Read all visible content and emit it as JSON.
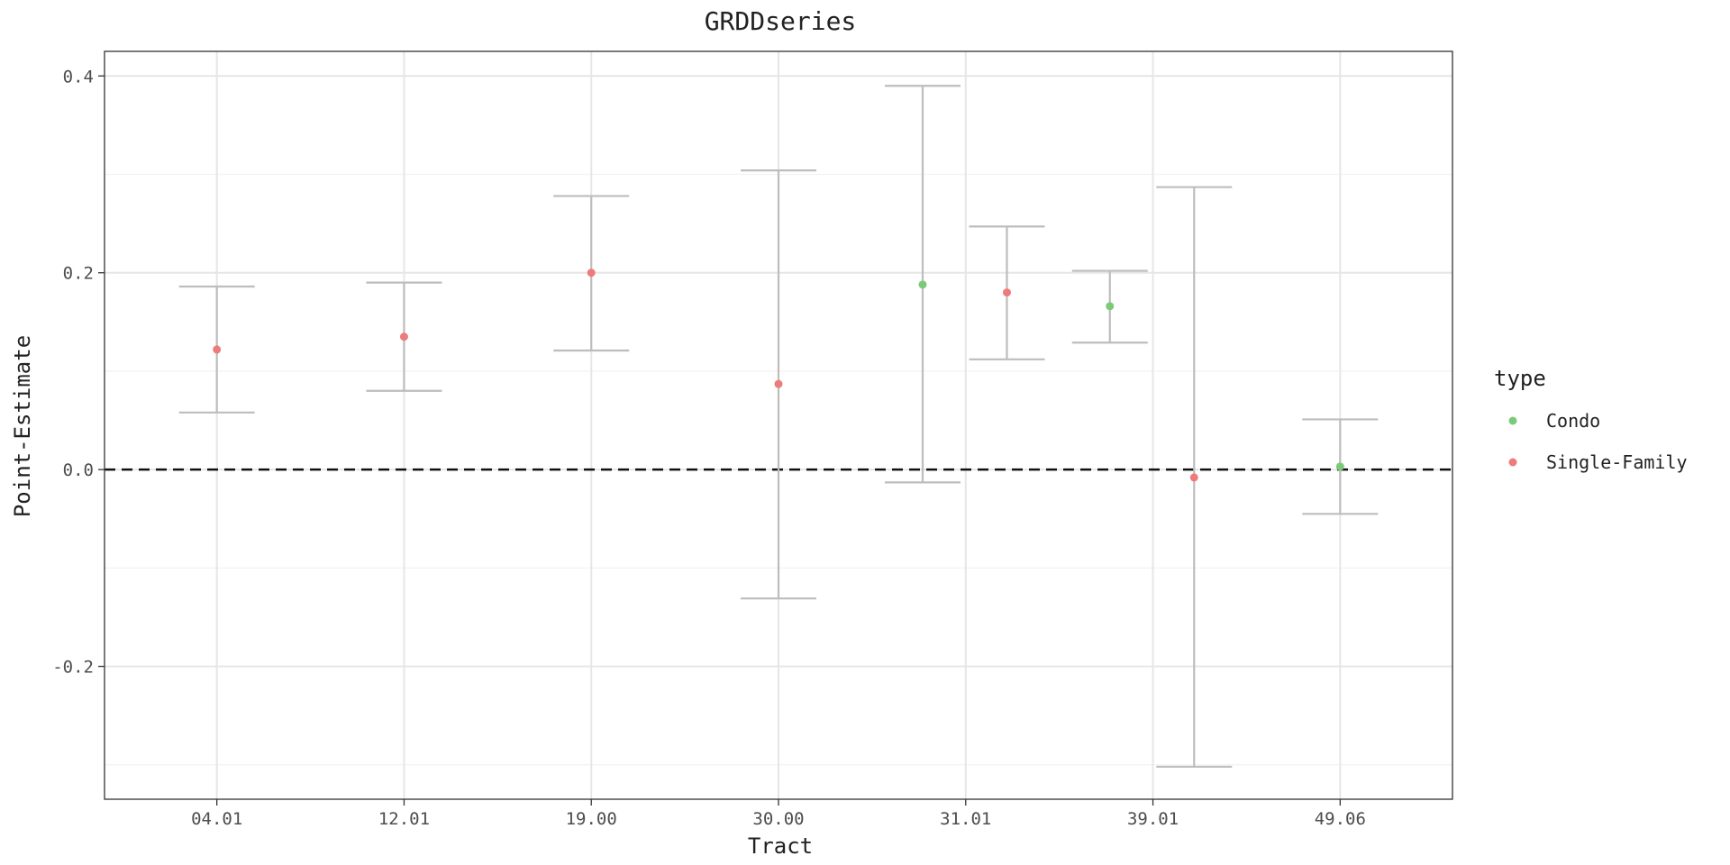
{
  "chart_data": {
    "type": "scatter",
    "title": "GRDDseries",
    "xlabel": "Tract",
    "ylabel": "Point-Estimate",
    "x_ticks": [
      "04.01",
      "12.01",
      "19.00",
      "30.00",
      "31.01",
      "39.01",
      "49.06"
    ],
    "x_range": [
      0.4,
      7.6
    ],
    "ylim": [
      -0.335,
      0.425
    ],
    "y_ticks": [
      -0.2,
      0.0,
      0.2,
      0.4
    ],
    "y_tick_labels": [
      "-0.2",
      "0.0",
      "0.2",
      "0.4"
    ],
    "y_minor": [
      -0.3,
      -0.1,
      0.1,
      0.3
    ],
    "reference_line": 0.0,
    "grid": true,
    "legend": {
      "title": "type",
      "placement": "right",
      "entries": [
        {
          "name": "Condo",
          "color": "#7cc97a"
        },
        {
          "name": "Single-Family",
          "color": "#ee7b7b"
        }
      ]
    },
    "errorbar_color": "#bdbdbd",
    "points": [
      {
        "x": 1.0,
        "y": 0.122,
        "lower": 0.058,
        "upper": 0.186,
        "type": "Single-Family"
      },
      {
        "x": 2.0,
        "y": 0.135,
        "lower": 0.08,
        "upper": 0.19,
        "type": "Single-Family"
      },
      {
        "x": 3.0,
        "y": 0.2,
        "lower": 0.121,
        "upper": 0.278,
        "type": "Single-Family"
      },
      {
        "x": 4.0,
        "y": 0.087,
        "lower": -0.131,
        "upper": 0.304,
        "type": "Single-Family"
      },
      {
        "x": 4.77,
        "y": 0.188,
        "lower": -0.013,
        "upper": 0.39,
        "type": "Condo"
      },
      {
        "x": 5.22,
        "y": 0.18,
        "lower": 0.112,
        "upper": 0.247,
        "type": "Single-Family"
      },
      {
        "x": 5.77,
        "y": 0.166,
        "lower": 0.129,
        "upper": 0.202,
        "type": "Condo"
      },
      {
        "x": 6.22,
        "y": -0.008,
        "lower": -0.302,
        "upper": 0.287,
        "type": "Single-Family"
      },
      {
        "x": 7.0,
        "y": 0.003,
        "lower": -0.045,
        "upper": 0.051,
        "type": "Condo"
      }
    ]
  }
}
